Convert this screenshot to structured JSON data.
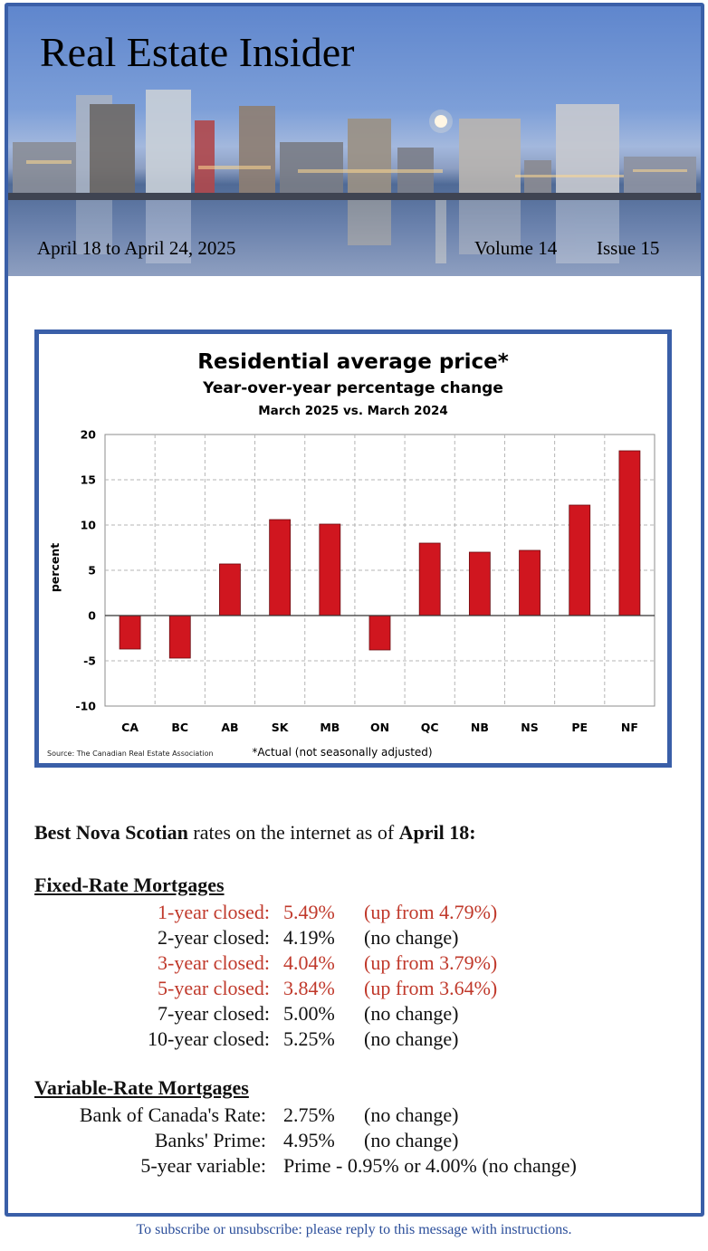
{
  "header": {
    "title": "Real Estate Insider",
    "dates": "April 18 to April 24, 2025",
    "volume": "Volume 14",
    "issue": "Issue 15"
  },
  "chart_data": {
    "type": "bar",
    "title": "Residential average price*",
    "subtitle": "Year-over-year percentage change",
    "subtitle2": "March 2025 vs. March 2024",
    "ylabel": "percent",
    "xlabel": "",
    "ylim": [
      -10,
      20
    ],
    "yticks": [
      20,
      15,
      10,
      5,
      0,
      -5,
      -10
    ],
    "categories": [
      "CA",
      "BC",
      "AB",
      "SK",
      "MB",
      "ON",
      "QC",
      "NB",
      "NS",
      "PE",
      "NF"
    ],
    "values": [
      -3.7,
      -4.7,
      5.7,
      10.6,
      10.1,
      -3.8,
      8.0,
      7.0,
      7.2,
      12.2,
      18.2
    ],
    "grid": true,
    "source": "Source: The Canadian Real Estate Association",
    "footnote": "*Actual (not seasonally adjusted)",
    "bar_color": "#d0161f"
  },
  "rates": {
    "intro_bold1": "Best Nova Scotian",
    "intro_mid": " rates on the internet as of ",
    "intro_bold2": "April 18:",
    "fixed_title": "Fixed-Rate Mortgages",
    "fixed": [
      {
        "label": "1-year closed:",
        "value": "5.49%",
        "change": "(up from 4.79%)",
        "highlight": true
      },
      {
        "label": "2-year closed:",
        "value": "4.19%",
        "change": "(no change)",
        "highlight": false
      },
      {
        "label": "3-year closed:",
        "value": "4.04%",
        "change": "(up from 3.79%)",
        "highlight": true
      },
      {
        "label": "5-year closed:",
        "value": "3.84%",
        "change": "(up from 3.64%)",
        "highlight": true
      },
      {
        "label": "7-year closed:",
        "value": "5.00%",
        "change": "(no change)",
        "highlight": false
      },
      {
        "label": "10-year closed:",
        "value": "5.25%",
        "change": "(no change)",
        "highlight": false
      }
    ],
    "variable_title": "Variable-Rate Mortgages",
    "variable": [
      {
        "label": "Bank of Canada's Rate:",
        "value": "2.75%",
        "change": "(no change)"
      },
      {
        "label": "Banks' Prime:",
        "value": "4.95%",
        "change": "(no change)"
      },
      {
        "label": "5-year variable:",
        "value": "Prime - 0.95% or 4.00% (no change)",
        "change": ""
      }
    ],
    "highlight_color": "#c0392b"
  },
  "footer": {
    "text": "To subscribe or unsubscribe: please reply to this message with instructions."
  }
}
